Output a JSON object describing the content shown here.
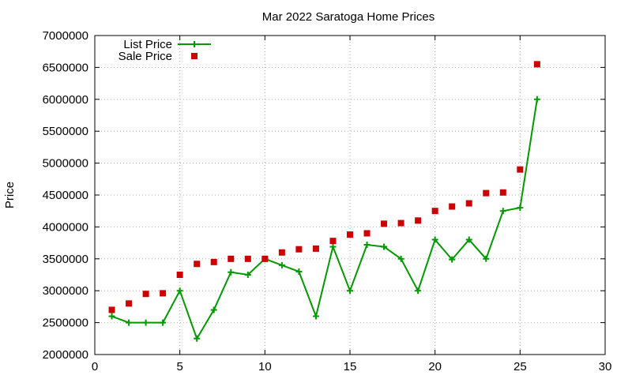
{
  "chart_data": {
    "type": "line",
    "title": "Mar 2022 Saratoga Home Prices",
    "xlabel": "",
    "ylabel": "Price",
    "xlim": [
      0,
      30
    ],
    "ylim": [
      2000000,
      7000000
    ],
    "xticks": [
      "0",
      "5",
      "10",
      "15",
      "20",
      "25",
      "30"
    ],
    "yticks": [
      "2000000",
      "2500000",
      "3000000",
      "3500000",
      "4000000",
      "4500000",
      "5000000",
      "5500000",
      "6000000",
      "6500000",
      "7000000"
    ],
    "grid": true,
    "legend": "top-left",
    "series": [
      {
        "name": "List Price",
        "style": "line-plus",
        "color": "#009900",
        "x": [
          1,
          2,
          3,
          4,
          5,
          6,
          7,
          8,
          9,
          10,
          11,
          12,
          13,
          14,
          15,
          16,
          17,
          18,
          19,
          20,
          21,
          22,
          23,
          24,
          25,
          26
        ],
        "y": [
          2600000,
          2500000,
          2500000,
          2500000,
          3000000,
          2250000,
          2700000,
          3290000,
          3250000,
          3500000,
          3400000,
          3300000,
          2600000,
          3690000,
          3000000,
          3720000,
          3690000,
          3500000,
          3000000,
          3800000,
          3490000,
          3800000,
          3500000,
          4250000,
          4300000,
          6000000
        ]
      },
      {
        "name": "Sale Price",
        "style": "square-markers",
        "color": "#cc0000",
        "x": [
          1,
          2,
          3,
          4,
          5,
          6,
          7,
          8,
          9,
          10,
          11,
          12,
          13,
          14,
          15,
          16,
          17,
          18,
          19,
          20,
          21,
          22,
          23,
          24,
          25,
          26
        ],
        "y": [
          2700000,
          2800000,
          2950000,
          2960000,
          3250000,
          3420000,
          3450000,
          3500000,
          3500000,
          3500000,
          3600000,
          3650000,
          3660000,
          3780000,
          3880000,
          3900000,
          4050000,
          4060000,
          4100000,
          4250000,
          4320000,
          4370000,
          4530000,
          4540000,
          4900000,
          6550000
        ]
      }
    ]
  }
}
